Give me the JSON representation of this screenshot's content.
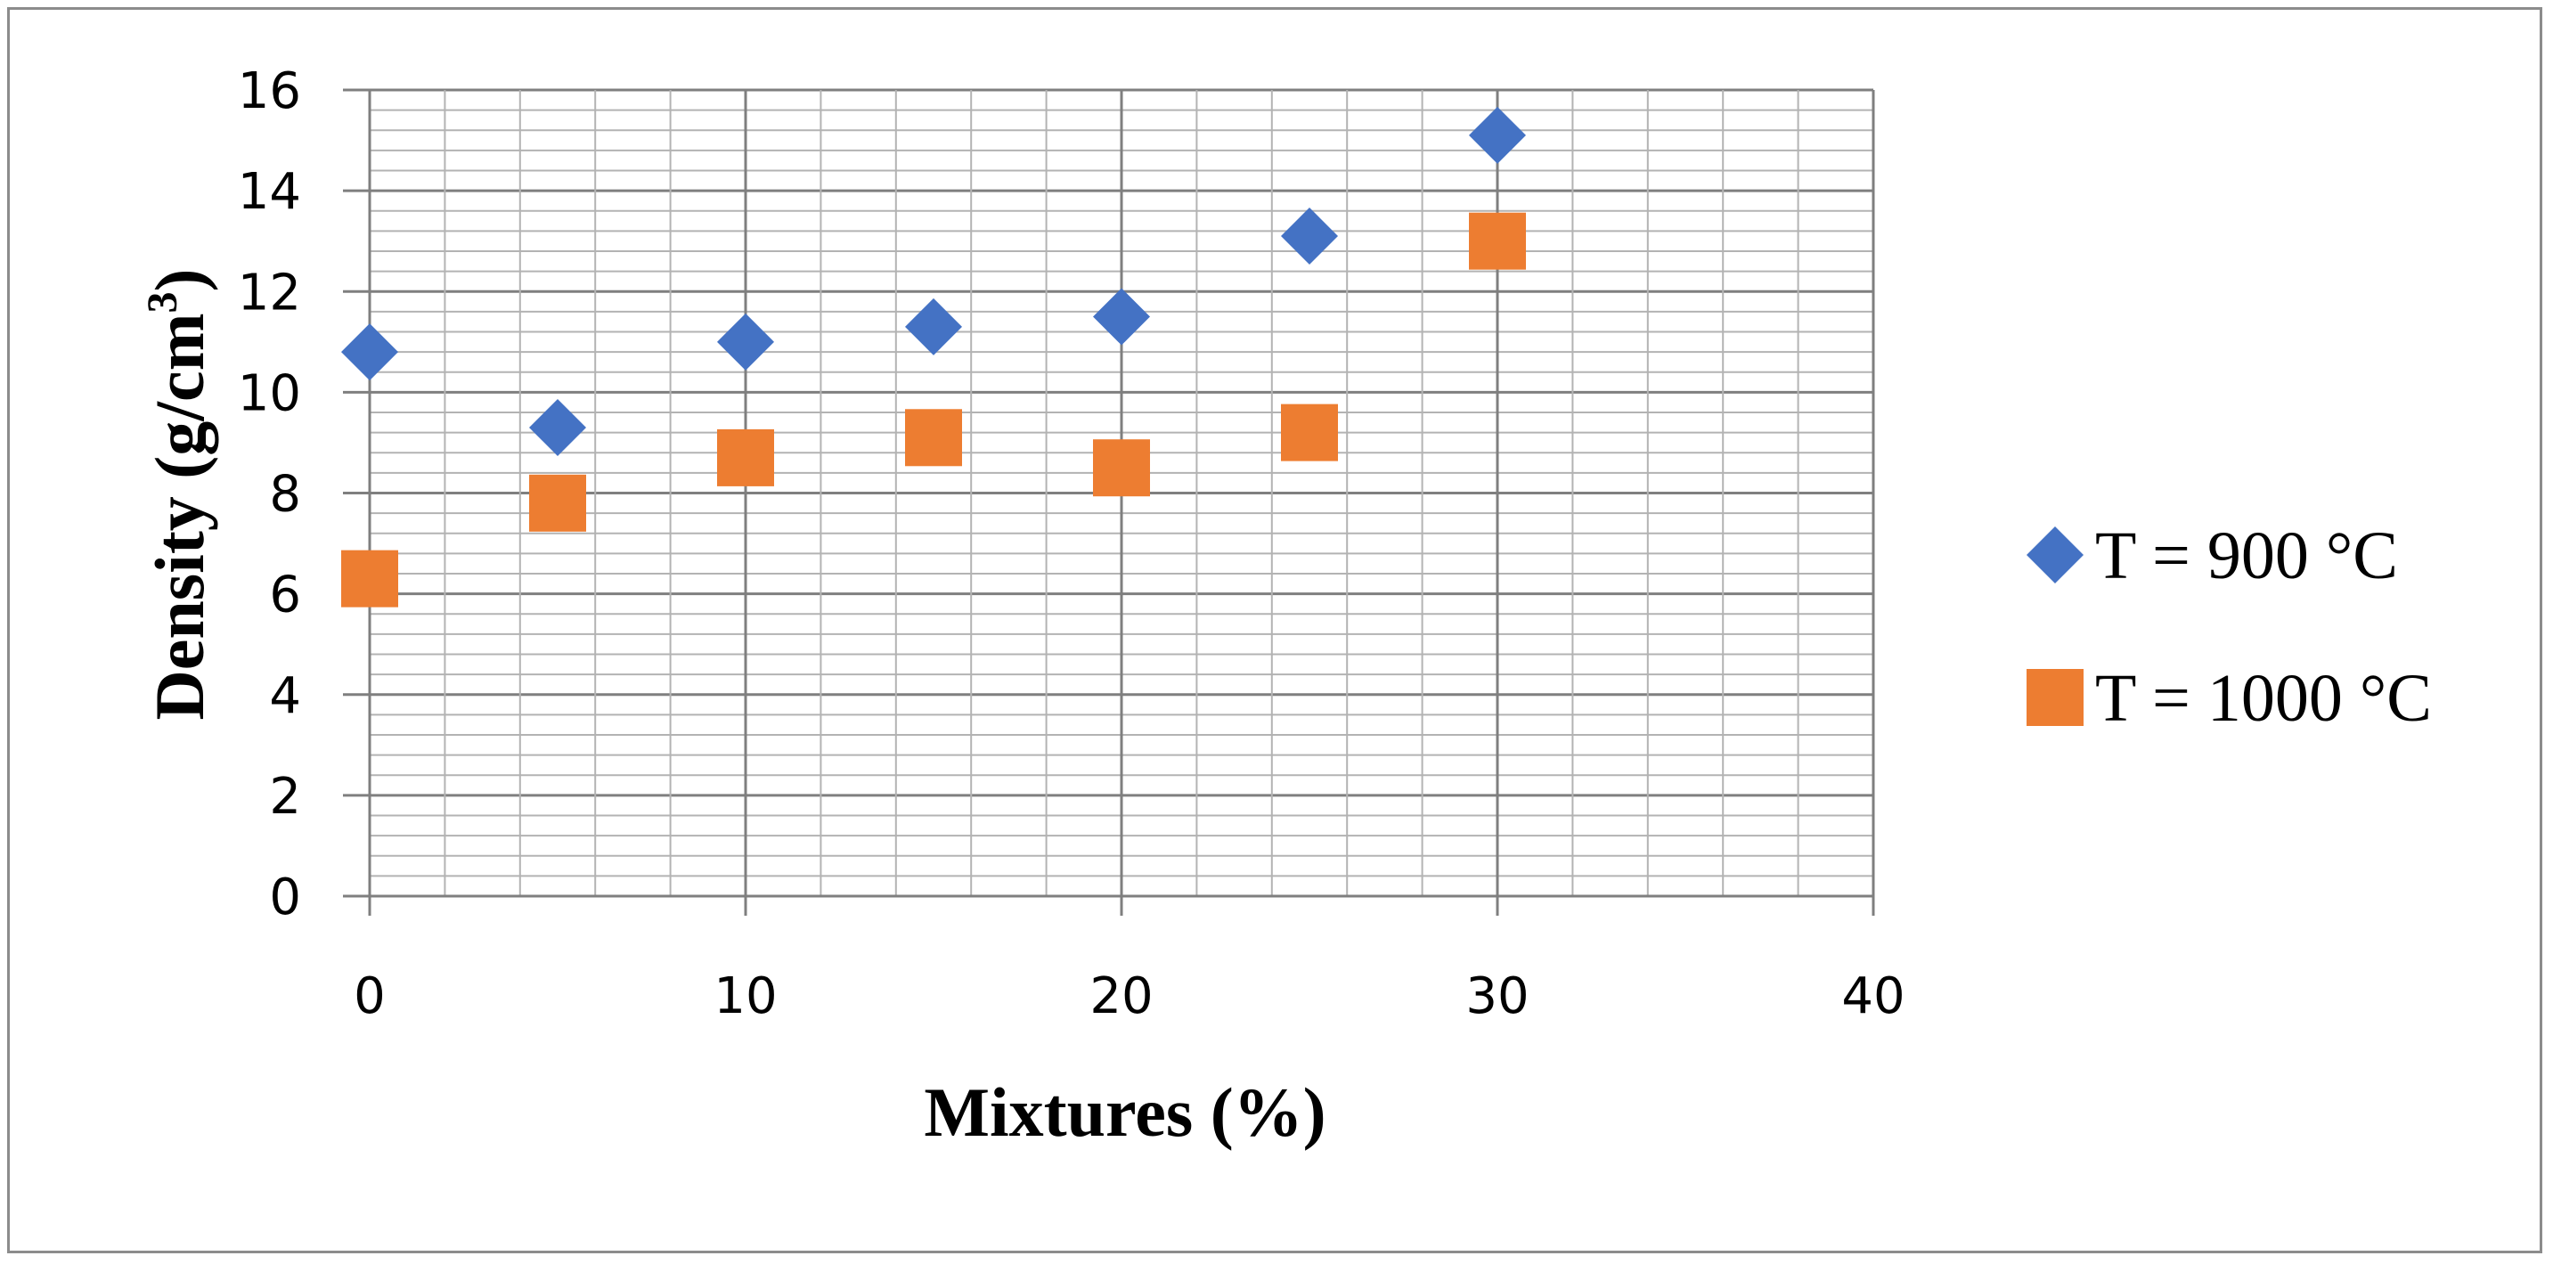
{
  "chart_data": {
    "type": "scatter",
    "title": "",
    "xlabel": "Mixtures (%)",
    "ylabel_main": "Density (g/cm",
    "ylabel_sup": "3",
    "ylabel_close": ")",
    "xlim": [
      0,
      40
    ],
    "ylim": [
      0,
      16
    ],
    "x_ticks": [
      "0",
      "10",
      "20",
      "30",
      "40"
    ],
    "y_ticks": [
      "0",
      "2",
      "4",
      "6",
      "8",
      "10",
      "12",
      "14",
      "16"
    ],
    "grid": true,
    "legend_position": "right",
    "series": [
      {
        "name": "T = 900 °C",
        "marker": "diamond",
        "color": "#4472C4",
        "x": [
          0,
          5,
          10,
          15,
          20,
          25,
          30
        ],
        "y": [
          10.8,
          9.3,
          11.0,
          11.3,
          11.5,
          13.1,
          15.1
        ]
      },
      {
        "name": "T = 1000 °C",
        "marker": "square",
        "color": "#ED7D31",
        "x": [
          0,
          5,
          10,
          15,
          20,
          25,
          30
        ],
        "y": [
          6.3,
          7.8,
          8.7,
          9.1,
          8.5,
          9.2,
          13.0
        ]
      }
    ]
  }
}
